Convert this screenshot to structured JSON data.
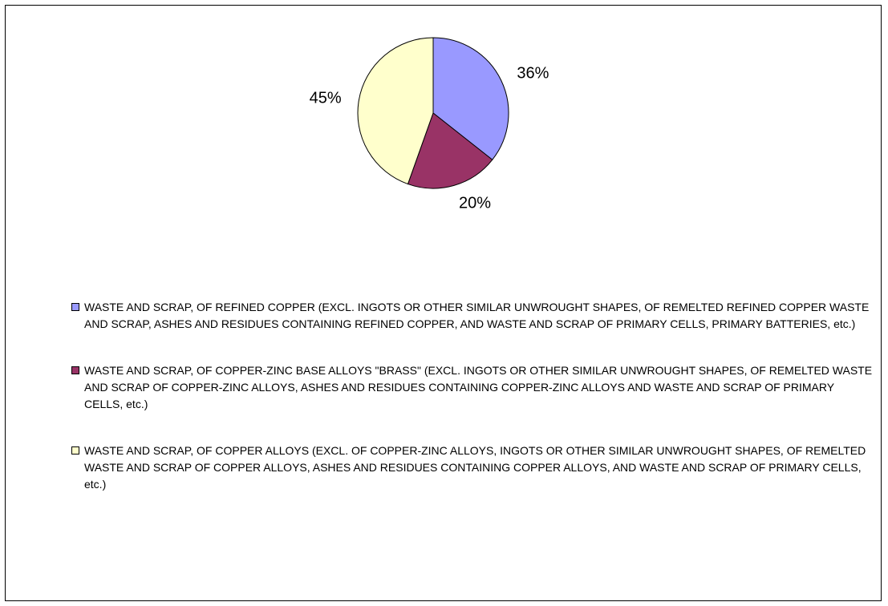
{
  "chart_data": {
    "type": "pie",
    "slices": [
      {
        "label": "WASTE AND SCRAP, OF REFINED COPPER (EXCL. INGOTS OR OTHER SIMILAR UNWROUGHT SHAPES, OF REMELTED REFINED COPPER WASTE AND SCRAP, ASHES AND RESIDUES CONTAINING REFINED COPPER, AND WASTE AND SCRAP OF PRIMARY CELLS, PRIMARY BATTERIES, etc.)",
        "value": 36,
        "display": "36%",
        "color": "#9999ff"
      },
      {
        "label": "WASTE AND SCRAP, OF COPPER-ZINC BASE ALLOYS \"BRASS\" (EXCL. INGOTS OR OTHER SIMILAR UNWROUGHT SHAPES, OF REMELTED WASTE AND SCRAP OF COPPER-ZINC ALLOYS, ASHES AND RESIDUES CONTAINING COPPER-ZINC ALLOYS AND WASTE AND SCRAP OF PRIMARY CELLS, etc.)",
        "value": 20,
        "display": "20%",
        "color": "#993366"
      },
      {
        "label": "WASTE AND SCRAP, OF COPPER ALLOYS (EXCL. OF COPPER-ZINC ALLOYS, INGOTS OR OTHER SIMILAR UNWROUGHT SHAPES, OF REMELTED WASTE AND SCRAP OF COPPER ALLOYS, ASHES AND RESIDUES CONTAINING COPPER ALLOYS, AND WASTE AND SCRAP OF PRIMARY CELLS, etc.)",
        "value": 45,
        "display": "45%",
        "color": "#ffffcc"
      }
    ],
    "start_angle_deg": 0,
    "direction": "clockwise",
    "legend_position": "bottom",
    "title": ""
  }
}
